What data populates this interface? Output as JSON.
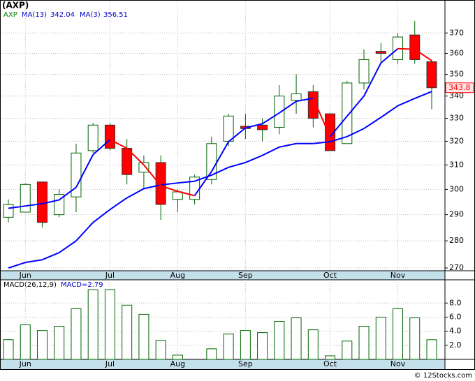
{
  "chart_data": [
    {
      "type": "candlestick",
      "title": "(AXP)",
      "ticker": "AXP",
      "ticker_color": "#008000",
      "categories": [
        null,
        "Jun",
        null,
        null,
        null,
        null,
        "Jul",
        null,
        null,
        null,
        "Aug",
        null,
        null,
        null,
        "Sep",
        null,
        null,
        null,
        null,
        "Oct",
        null,
        null,
        null,
        "Nov",
        null,
        null
      ],
      "open": [
        289,
        291,
        303,
        290,
        297,
        316,
        327,
        317,
        307,
        311,
        296,
        296,
        304,
        320,
        326.5,
        327,
        326,
        338,
        342,
        332,
        319,
        346,
        361,
        357,
        369,
        356
      ],
      "high": [
        296,
        302.5,
        303,
        300,
        319,
        328,
        328,
        321,
        314,
        314,
        300,
        306,
        322,
        332,
        332,
        330,
        345,
        350,
        345,
        332,
        347,
        362,
        365,
        370,
        376,
        357
      ],
      "low": [
        287,
        291,
        285,
        289,
        291,
        315,
        316,
        302,
        300,
        288,
        291,
        294,
        302,
        318,
        321,
        320,
        323,
        332,
        326,
        316,
        319,
        343,
        355,
        355,
        355,
        334
      ],
      "close": [
        294,
        302,
        287,
        298,
        315,
        327,
        317,
        306,
        311,
        294,
        299,
        305,
        319,
        331,
        325.5,
        325,
        340,
        341,
        330,
        316,
        346,
        357,
        360,
        368,
        357,
        343.8
      ],
      "up_color": "#ffffff",
      "down_color": "#ff0000",
      "edge_color": "#006400",
      "series": [
        {
          "name": "MA(13)",
          "color": "#0000ff",
          "values": [
            270,
            272,
            273,
            275.6,
            280,
            287,
            292,
            296.6,
            300.3,
            301.8,
            302.6,
            303.3,
            305.8,
            309,
            311,
            314,
            317.5,
            319,
            319,
            319.8,
            322,
            325.5,
            330.4,
            335.6,
            338.9,
            342.04
          ]
        },
        {
          "name": "MA(3)",
          "color": "#0000ff",
          "down_color": "#ff0000",
          "values": [
            292.5,
            293.4,
            294.3,
            295.8,
            300.8,
            314.3,
            320.7,
            317,
            310,
            301.5,
            299.2,
            297.5,
            307.3,
            319.8,
            325.8,
            327.6,
            332.4,
            337.6,
            339,
            322,
            330.9,
            340,
            355.4,
            362.3,
            362,
            356.51
          ]
        }
      ],
      "log_scale": true,
      "ylim": [
        269,
        386
      ],
      "yticks": [
        270,
        280,
        290,
        300,
        310,
        320,
        330,
        340,
        350,
        360,
        370
      ],
      "grid": true
    },
    {
      "type": "bar",
      "title": "MACD(26,12,9)",
      "current_label": "MACD=2.79",
      "values": [
        2.8,
        4.9,
        4.1,
        4.7,
        7.2,
        9.9,
        9.9,
        7.7,
        6.4,
        2.7,
        0.6,
        0,
        1.5,
        3.6,
        4.1,
        3.8,
        5.4,
        5.9,
        4.2,
        0.5,
        2.6,
        4.7,
        6.0,
        7.2,
        5.9,
        2.79
      ],
      "color": "#006400",
      "ylim": [
        0,
        11.2
      ],
      "yticks": [
        {
          "value": 2,
          "label": "2.0"
        },
        {
          "value": 4,
          "label": "4.0"
        },
        {
          "value": 6,
          "label": "6.0"
        },
        {
          "value": 8,
          "label": "8.0"
        }
      ],
      "grid": true
    }
  ],
  "footer": "© 12Stocks.com"
}
